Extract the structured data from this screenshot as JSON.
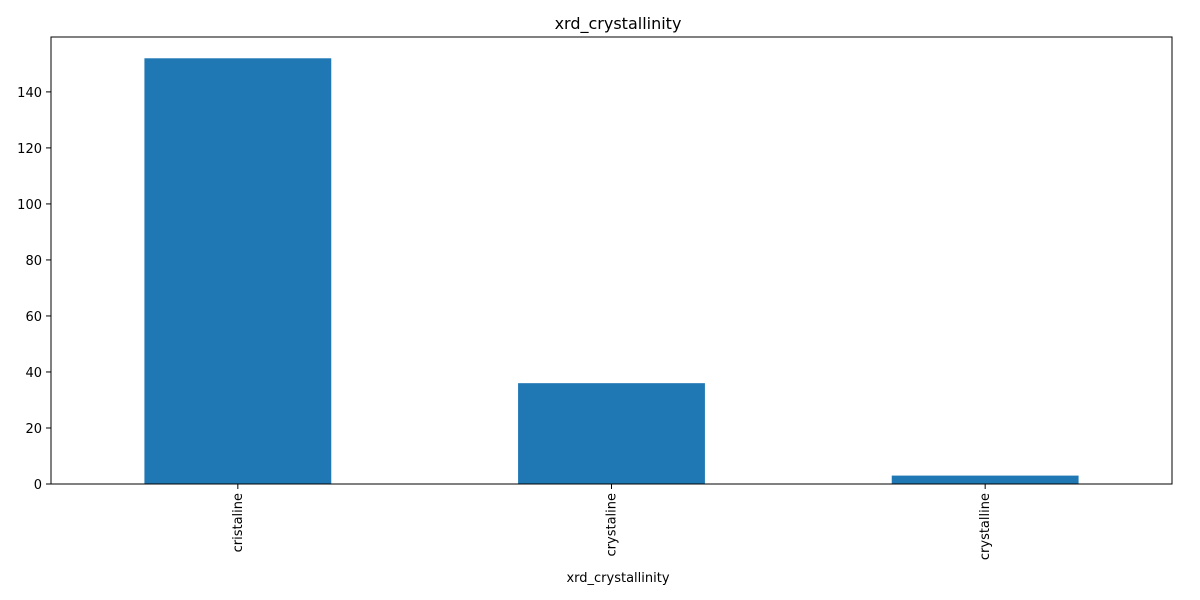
{
  "chart_data": {
    "type": "bar",
    "title": "xrd_crystallinity",
    "xlabel": "xrd_crystallinity",
    "ylabel": "",
    "categories": [
      "cristaline",
      "crystaline",
      "crystalline"
    ],
    "values": [
      152,
      36,
      3
    ],
    "ylim": [
      0,
      159.6
    ],
    "yticks": [
      0,
      20,
      40,
      60,
      80,
      100,
      120,
      140
    ],
    "bar_color": "#1f77b4",
    "grid": false,
    "legend": false
  }
}
